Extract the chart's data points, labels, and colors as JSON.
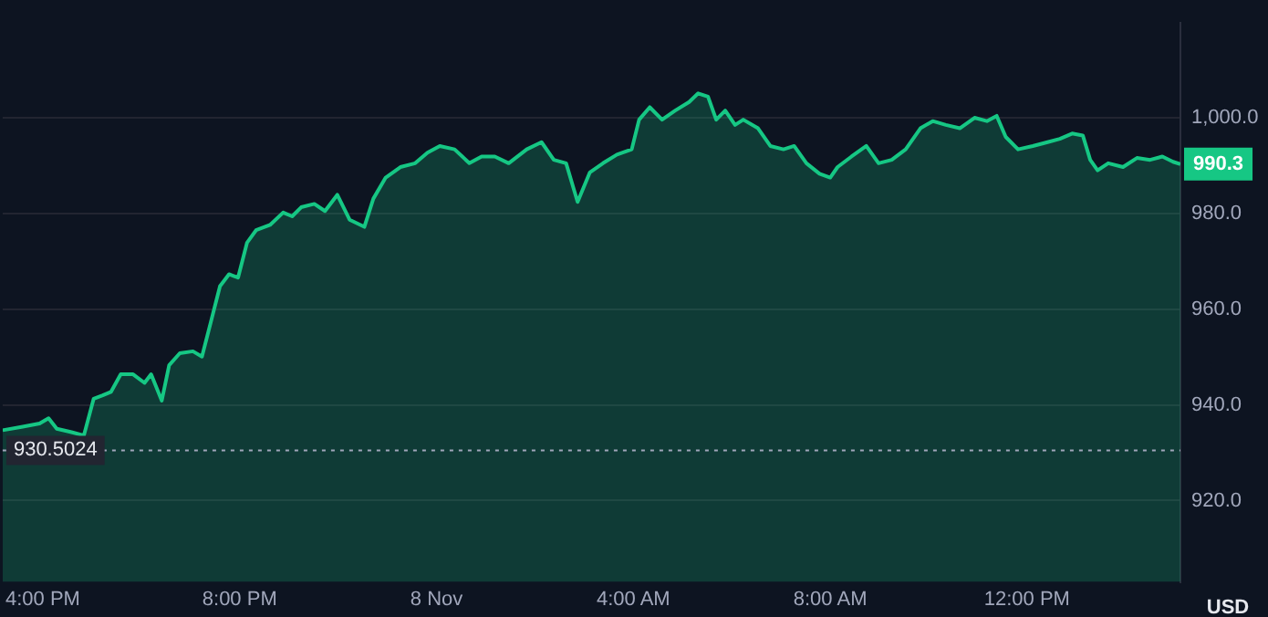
{
  "chart_data": {
    "type": "area",
    "ylabel": "USD",
    "x": [
      "--11-07T15:11",
      "--11-07T15:34",
      "--11-07T15:56",
      "--11-07T16:07",
      "--11-07T16:17",
      "--11-07T16:35",
      "--11-07T16:50",
      "--11-07T17:02",
      "--11-07T17:13",
      "--11-07T17:23",
      "--11-07T17:35",
      "--11-07T17:50",
      "--11-07T18:04",
      "--11-07T18:12",
      "--11-07T18:25",
      "--11-07T18:34",
      "--11-07T18:47",
      "--11-07T19:03",
      "--11-07T19:14",
      "--11-07T19:25",
      "--11-07T19:36",
      "--11-07T19:47",
      "--11-07T19:58",
      "--11-07T20:09",
      "--11-07T20:20",
      "--11-07T20:37",
      "--11-07T20:53",
      "--11-07T21:04",
      "--11-07T21:15",
      "--11-07T21:31",
      "--11-07T21:44",
      "--11-07T21:59",
      "--11-07T22:14",
      "--11-07T22:32",
      "--11-07T22:43",
      "--11-07T22:58",
      "--11-07T23:16",
      "--11-07T23:34",
      "--11-07T23:49",
      "--11-08T00:04",
      "--11-08T00:22",
      "--11-08T00:40",
      "--11-08T00:55",
      "--11-08T01:11",
      "--11-08T01:28",
      "--11-08T01:50",
      "--11-08T02:08",
      "--11-08T02:23",
      "--11-08T02:38",
      "--11-08T02:52",
      "--11-08T03:07",
      "--11-08T03:23",
      "--11-08T03:40",
      "--11-08T03:58",
      "--11-08T04:07",
      "--11-08T04:20",
      "--11-08T04:35",
      "--11-08T04:51",
      "--11-08T05:08",
      "--11-08T05:19",
      "--11-08T05:31",
      "--11-08T05:41",
      "--11-08T05:52",
      "--11-08T06:04",
      "--11-08T06:14",
      "--11-08T06:32",
      "--11-08T06:47",
      "--11-08T07:03",
      "--11-08T07:16",
      "--11-08T07:31",
      "--11-08T07:47",
      "--11-08T08:00",
      "--11-08T08:09",
      "--11-08T08:26",
      "--11-08T08:44",
      "--11-08T08:59",
      "--11-08T09:15",
      "--11-08T09:32",
      "--11-08T09:50",
      "--11-08T10:05",
      "--11-08T10:21",
      "--11-08T10:38",
      "--11-08T10:56",
      "--11-08T11:11",
      "--11-08T11:23",
      "--11-08T11:34",
      "--11-08T11:49",
      "--11-08T12:07",
      "--11-08T12:25",
      "--11-08T12:40",
      "--11-08T12:55",
      "--11-08T13:08",
      "--11-08T13:17",
      "--11-08T13:26",
      "--11-08T13:39",
      "--11-08T13:57",
      "--11-08T14:14",
      "--11-08T14:30",
      "--11-08T14:45",
      "--11-08T14:58",
      "--11-08T15:07"
    ],
    "series": [
      {
        "color": "#16c784",
        "values": [
          934.7,
          935.4,
          936.1,
          937.2,
          935,
          934.3,
          933.6,
          941.3,
          942,
          942.7,
          946.4,
          946.4,
          944.6,
          946.4,
          940.9,
          948.3,
          950.8,
          951.2,
          950.1,
          957.4,
          964.8,
          967.3,
          966.6,
          973.9,
          976.5,
          977.6,
          980.2,
          979.4,
          981.3,
          982,
          980.5,
          983.9,
          978.7,
          977.2,
          983.1,
          987.5,
          989.7,
          990.5,
          992.7,
          994.1,
          993.4,
          990.5,
          991.9,
          991.9,
          990.5,
          993.4,
          994.9,
          991.2,
          990.5,
          982.4,
          988.6,
          990.5,
          992.3,
          993.4,
          999.6,
          1002.2,
          999.6,
          1001.5,
          1003.3,
          1005.1,
          1004.4,
          999.6,
          1001.5,
          998.5,
          999.6,
          997.8,
          994.1,
          993.4,
          994.1,
          990.5,
          988.3,
          987.5,
          989.7,
          991.9,
          994.1,
          990.5,
          991.2,
          993.4,
          997.8,
          999.3,
          998.5,
          997.8,
          1000,
          999.3,
          1000.4,
          996,
          993.4,
          994.1,
          994.9,
          995.6,
          996.7,
          996.3,
          991.2,
          989,
          990.5,
          989.7,
          991.6,
          991.2,
          991.9,
          990.8,
          990.3
        ],
        "value_labels": [
          null,
          null,
          null,
          null,
          null,
          null,
          null,
          null,
          null,
          null,
          null,
          null,
          null,
          null,
          null,
          null,
          null,
          null,
          null,
          null,
          null,
          null,
          null,
          null,
          null,
          null,
          null,
          null,
          null,
          null,
          null,
          null,
          null,
          null,
          null,
          null,
          null,
          null,
          null,
          null,
          null,
          null,
          null,
          null,
          null,
          null,
          null,
          null,
          null,
          null,
          null,
          null,
          null,
          null,
          null,
          null,
          null,
          null,
          null,
          null,
          null,
          null,
          null,
          null,
          null,
          null,
          null,
          null,
          null,
          null,
          null,
          null,
          null,
          null,
          null,
          null,
          null,
          null,
          null,
          null,
          null,
          null,
          null,
          null,
          null,
          null,
          null,
          null,
          null,
          null,
          null,
          null,
          null,
          null,
          null,
          null,
          null,
          null,
          null,
          null,
          "990.3"
        ]
      }
    ],
    "xlim": [
      "--11-07T15:11",
      "--11-08T15:07"
    ],
    "xticks": [
      {
        "value": "--11-07T16:00",
        "label": "4:00 PM"
      },
      {
        "value": "--11-07T20:00",
        "label": "8:00 PM"
      },
      {
        "value": "--11-08T00:00",
        "label": "8 Nov"
      },
      {
        "value": "--11-08T04:00",
        "label": "4:00 AM"
      },
      {
        "value": "--11-08T08:00",
        "label": "8:00 AM"
      },
      {
        "value": "--11-08T12:00",
        "label": "12:00 PM"
      }
    ],
    "ylim": [
      903,
      1019.8
    ],
    "yticks": [
      {
        "value": 920,
        "label": "920.0"
      },
      {
        "value": 940,
        "label": "940.0"
      },
      {
        "value": 960,
        "label": "960.0"
      },
      {
        "value": 980,
        "label": "980.0"
      },
      {
        "value": 1000,
        "label": "1,000.0"
      }
    ],
    "ref_lines": [
      {
        "axis": "y",
        "value": 930.5024,
        "label": "930.5024",
        "color": "#a1a7bb",
        "line_style": "dotted"
      }
    ],
    "grid": "y",
    "legend": false,
    "marker": "none",
    "line_style": "solid"
  }
}
